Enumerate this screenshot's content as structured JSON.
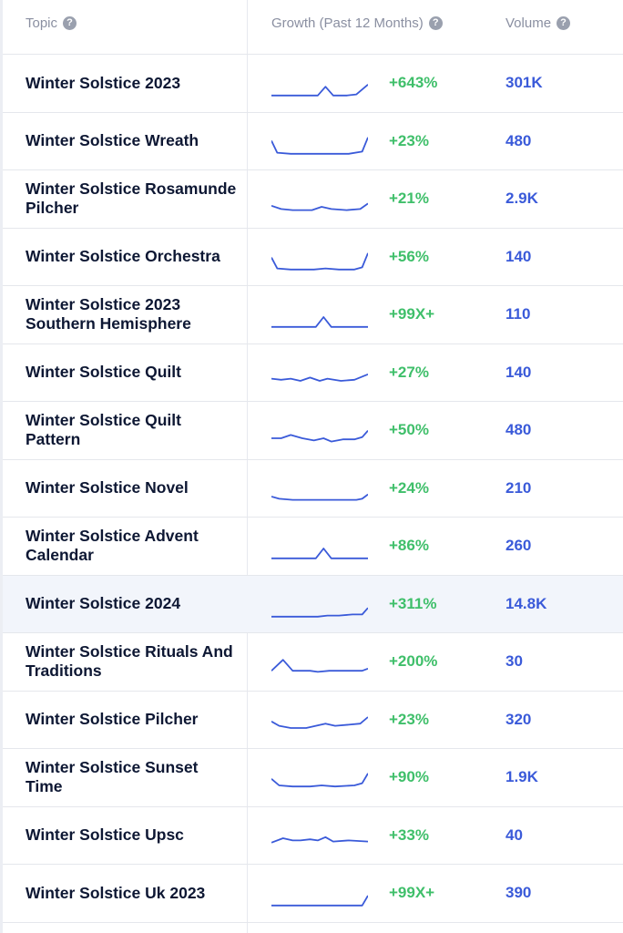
{
  "header": {
    "topic": "Topic",
    "growth": "Growth (Past 12 Months)",
    "volume": "Volume",
    "help_glyph": "?"
  },
  "colors": {
    "growth": "#3fbf6a",
    "volume": "#3a5ad9",
    "sparkline": "#3a5ad9",
    "highlight_row": "#f2f5fb"
  },
  "rows": [
    {
      "topic": "Winter Solstice 2023",
      "growth": "+643%",
      "volume": "301K"
    },
    {
      "topic": "Winter Solstice Wreath",
      "growth": "+23%",
      "volume": "480"
    },
    {
      "topic": "Winter Solstice Rosamunde Pilcher",
      "growth": "+21%",
      "volume": "2.9K"
    },
    {
      "topic": "Winter Solstice Orchestra",
      "growth": "+56%",
      "volume": "140"
    },
    {
      "topic": "Winter Solstice 2023 Southern Hemisphere",
      "growth": "+99X+",
      "volume": "110"
    },
    {
      "topic": "Winter Solstice Quilt",
      "growth": "+27%",
      "volume": "140"
    },
    {
      "topic": "Winter Solstice Quilt Pattern",
      "growth": "+50%",
      "volume": "480"
    },
    {
      "topic": "Winter Solstice Novel",
      "growth": "+24%",
      "volume": "210"
    },
    {
      "topic": "Winter Solstice Advent Calendar",
      "growth": "+86%",
      "volume": "260"
    },
    {
      "topic": "Winter Solstice 2024",
      "growth": "+311%",
      "volume": "14.8K",
      "highlighted": true
    },
    {
      "topic": "Winter Solstice Rituals And Traditions",
      "growth": "+200%",
      "volume": "30"
    },
    {
      "topic": "Winter Solstice Pilcher",
      "growth": "+23%",
      "volume": "320"
    },
    {
      "topic": "Winter Solstice Sunset Time",
      "growth": "+90%",
      "volume": "1.9K"
    },
    {
      "topic": "Winter Solstice Upsc",
      "growth": "+33%",
      "volume": "40"
    },
    {
      "topic": "Winter Solstice Uk 2023",
      "growth": "+99X+",
      "volume": "390"
    }
  ]
}
